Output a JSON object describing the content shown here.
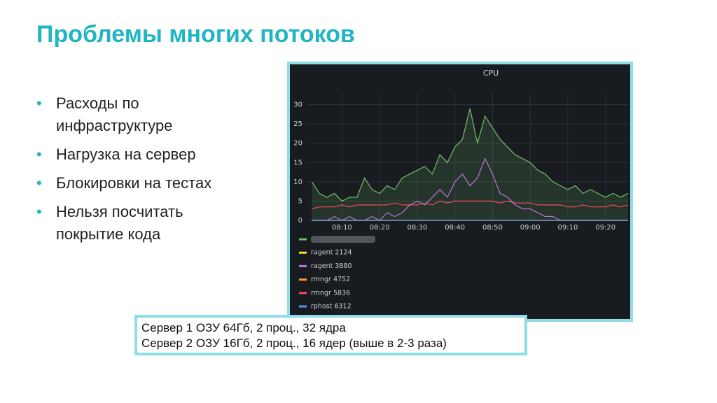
{
  "title": "Проблемы многих потоков",
  "bullets": [
    [
      "Расходы по",
      "инфраструктуре"
    ],
    [
      "Нагрузка на сервер"
    ],
    [
      "Блокировки на тестах"
    ],
    [
      "Нельзя посчитать",
      "покрытие кода"
    ]
  ],
  "note": [
    "Сервер 1 ОЗУ 64Гб, 2 проц., 32 ядра",
    "Сервер 2 ОЗУ 16Гб, 2 проц., 16 ядер (выше в 2-3 раза)"
  ],
  "chart_data": {
    "type": "line",
    "title": "CPU",
    "x": [
      482,
      484,
      486,
      488,
      490,
      492,
      494,
      496,
      498,
      500,
      502,
      504,
      506,
      508,
      510,
      512,
      514,
      516,
      518,
      520,
      522,
      524,
      526,
      528,
      530,
      532,
      534,
      536,
      538,
      540,
      542,
      544,
      546,
      548,
      550,
      552,
      554,
      556,
      558,
      560,
      562,
      564,
      566
    ],
    "xlim": [
      481,
      566
    ],
    "xticks": [
      {
        "value": 490,
        "label": "08:10"
      },
      {
        "value": 500,
        "label": "08:20"
      },
      {
        "value": 510,
        "label": "08:30"
      },
      {
        "value": 520,
        "label": "08:40"
      },
      {
        "value": 530,
        "label": "08:50"
      },
      {
        "value": 540,
        "label": "09:00"
      },
      {
        "value": 550,
        "label": "09:10"
      },
      {
        "value": 560,
        "label": "09:20"
      }
    ],
    "ylim": [
      0,
      33
    ],
    "yticks": [
      0,
      5,
      10,
      15,
      20,
      25,
      30
    ],
    "grid": true,
    "series": [
      {
        "name": null,
        "color": "#73bf69",
        "area": true,
        "values": [
          10,
          7,
          6,
          7,
          5,
          6,
          6,
          11,
          8,
          7,
          9,
          8,
          11,
          12,
          13,
          14,
          12,
          17,
          15,
          19,
          21,
          29,
          20,
          27,
          24,
          21,
          19,
          17,
          16,
          15,
          13,
          12,
          10,
          9,
          8,
          9,
          7,
          8,
          7,
          6,
          7,
          6,
          7
        ]
      },
      {
        "name": "ragent 2124",
        "color": "#fade2a",
        "values": [
          0,
          0,
          0,
          0,
          0,
          0,
          0,
          0,
          0,
          0,
          0,
          0,
          0,
          0,
          0,
          0,
          0,
          0,
          0,
          0,
          0,
          0,
          0,
          0,
          0,
          0,
          0,
          0,
          0,
          0,
          0,
          0,
          0,
          0,
          0,
          0,
          0,
          0,
          0,
          0,
          0,
          0,
          0
        ]
      },
      {
        "name": "ragent 3880",
        "color": "#b877d9",
        "values": [
          0,
          0,
          0,
          1,
          0,
          1,
          0,
          0,
          1,
          0,
          2,
          1,
          2,
          4,
          5,
          4,
          6,
          8,
          6,
          10,
          12,
          9,
          11,
          16,
          12,
          7,
          6,
          4,
          3,
          3,
          2,
          1,
          1,
          0,
          0,
          0,
          0,
          0,
          0,
          0,
          0,
          0,
          0
        ]
      },
      {
        "name": "rmngr 4752",
        "color": "#ff9830",
        "values": [
          0,
          0,
          0,
          0,
          0,
          0,
          0,
          0,
          0,
          0,
          0,
          0,
          0,
          0,
          0,
          0,
          0,
          0,
          0,
          0,
          0,
          0,
          0,
          0,
          0,
          0,
          0,
          0,
          0,
          0,
          0,
          0,
          0,
          0,
          0,
          0,
          0,
          0,
          0,
          0,
          0,
          0,
          0
        ]
      },
      {
        "name": "rmngr 5836",
        "color": "#f2495c",
        "values": [
          3,
          3.5,
          3.5,
          3.5,
          4,
          3.5,
          4,
          4,
          4,
          4,
          4,
          4.5,
          4,
          4,
          4,
          4.5,
          4,
          5,
          4.5,
          5,
          5,
          5,
          5,
          5,
          5,
          4.5,
          5,
          4.5,
          4.5,
          4.5,
          4,
          4,
          4,
          4,
          3.5,
          3.5,
          4,
          3.5,
          3.5,
          3.5,
          4,
          3.5,
          4
        ]
      },
      {
        "name": "rphost 6312",
        "color": "#5794f2",
        "values": [
          0,
          0,
          0,
          0,
          0,
          0,
          0,
          0,
          0,
          0,
          0,
          0,
          0,
          0,
          0,
          0,
          0,
          0,
          0,
          0,
          0,
          0,
          0,
          0,
          0,
          0,
          0,
          0,
          0,
          0,
          0,
          0,
          0,
          0,
          0,
          0,
          0,
          0,
          0,
          0,
          0,
          0,
          0
        ]
      }
    ]
  }
}
